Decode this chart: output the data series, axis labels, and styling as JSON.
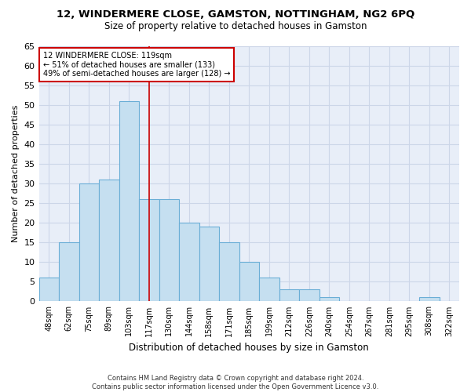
{
  "title": "12, WINDERMERE CLOSE, GAMSTON, NOTTINGHAM, NG2 6PQ",
  "subtitle": "Size of property relative to detached houses in Gamston",
  "xlabel": "Distribution of detached houses by size in Gamston",
  "ylabel": "Number of detached properties",
  "bar_labels": [
    "48sqm",
    "62sqm",
    "75sqm",
    "89sqm",
    "103sqm",
    "117sqm",
    "130sqm",
    "144sqm",
    "158sqm",
    "171sqm",
    "185sqm",
    "199sqm",
    "212sqm",
    "226sqm",
    "240sqm",
    "254sqm",
    "267sqm",
    "281sqm",
    "295sqm",
    "308sqm",
    "322sqm"
  ],
  "bar_heights": [
    6,
    15,
    30,
    31,
    51,
    26,
    26,
    20,
    19,
    15,
    10,
    6,
    3,
    3,
    1,
    0,
    0,
    0,
    0,
    1,
    0
  ],
  "bar_color": "#c5dff0",
  "bar_edge_color": "#6aaed6",
  "grid_color": "#ccd6e8",
  "background_color": "#e8eef8",
  "ref_line_color": "#cc0000",
  "annotation_box_color": "#ffffff",
  "annotation_box_edge_color": "#cc0000",
  "ref_line_label": "12 WINDERMERE CLOSE: 119sqm",
  "annotation_line1": "← 51% of detached houses are smaller (133)",
  "annotation_line2": "49% of semi-detached houses are larger (128) →",
  "ylim": [
    0,
    65
  ],
  "yticks": [
    0,
    5,
    10,
    15,
    20,
    25,
    30,
    35,
    40,
    45,
    50,
    55,
    60,
    65
  ],
  "footer1": "Contains HM Land Registry data © Crown copyright and database right 2024.",
  "footer2": "Contains public sector information licensed under the Open Government Licence v3.0."
}
